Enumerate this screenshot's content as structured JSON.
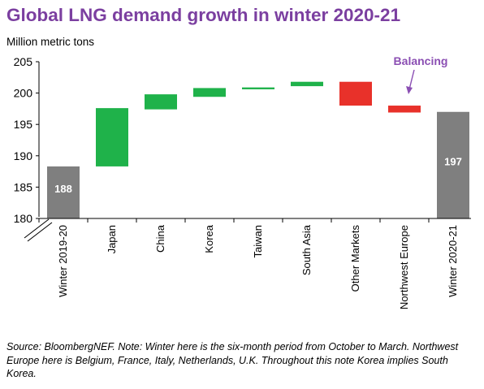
{
  "title": "Global LNG demand growth in winter 2020-21",
  "colors": {
    "title": "#7b3fa0",
    "increase": "#1fb24a",
    "decrease": "#e8312a",
    "total": "#7f7f7f",
    "annotation": "#8b4fb3"
  },
  "chart_data": {
    "type": "bar",
    "subtype": "waterfall",
    "ylabel": "Million metric tons",
    "ylim": [
      180,
      205
    ],
    "yticks": [
      180,
      185,
      190,
      195,
      200,
      205
    ],
    "axis_break": true,
    "grid": false,
    "categories": [
      "Winter 2019-20",
      "Japan",
      "China",
      "Korea",
      "Taiwan",
      "South Asia",
      "Other Markets",
      "Northwest Europe",
      "Winter 2020-21"
    ],
    "bars": [
      {
        "category": "Winter 2019-20",
        "kind": "total",
        "start": 180,
        "end": 188.3,
        "label": "188"
      },
      {
        "category": "Japan",
        "kind": "increase",
        "start": 188.3,
        "end": 197.6
      },
      {
        "category": "China",
        "kind": "increase",
        "start": 197.4,
        "end": 199.8
      },
      {
        "category": "Korea",
        "kind": "increase",
        "start": 199.4,
        "end": 200.8
      },
      {
        "category": "Taiwan",
        "kind": "increase",
        "start": 200.6,
        "end": 200.9
      },
      {
        "category": "South Asia",
        "kind": "increase",
        "start": 201.1,
        "end": 201.8
      },
      {
        "category": "Other Markets",
        "kind": "decrease",
        "start": 201.8,
        "end": 198.0
      },
      {
        "category": "Northwest Europe",
        "kind": "decrease",
        "start": 198.0,
        "end": 196.9
      },
      {
        "category": "Winter 2020-21",
        "kind": "total",
        "start": 180,
        "end": 197.0,
        "label": "197"
      }
    ],
    "annotations": [
      {
        "text": "Balancing",
        "points_to": "Northwest Europe"
      }
    ]
  },
  "source": "Source: BloombergNEF. Note: Winter here is the six-month period from October to March. Northwest Europe here is Belgium, France, Italy, Netherlands, U.K. Throughout this note Korea implies South Korea."
}
